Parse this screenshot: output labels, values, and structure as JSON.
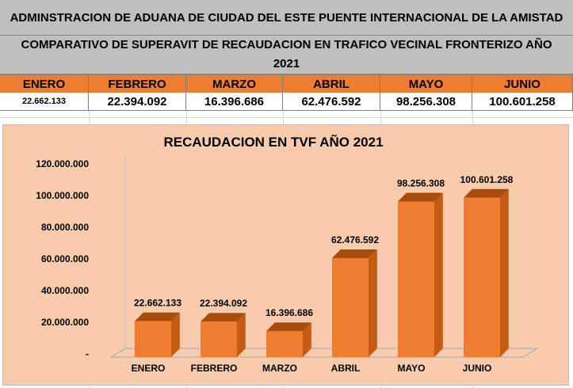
{
  "header": {
    "title": "ADMINSTRACION DE ADUANA DE CIUDAD DEL ESTE PUENTE INTERNACIONAL DE LA AMISTAD",
    "subtitle_line1": "COMPARATIVO DE SUPERAVIT DE RECAUDACION EN TRAFICO VECINAL FRONTERIZO AÑO",
    "subtitle_line2": "2021"
  },
  "table": {
    "months": [
      "ENERO",
      "FEBRERO",
      "MARZO",
      "ABRIL",
      "MAYO",
      "JUNIO"
    ],
    "values": [
      "22.662.133",
      "22.394.092",
      "16.396.686",
      "62.476.592",
      "98.256.308",
      "100.601.258"
    ]
  },
  "colors": {
    "header_bg": "#bfbfbf",
    "month_bg": "#ed7d31",
    "chart_bg": "#f8cbad",
    "bar_front": "#ed7d31",
    "bar_side": "#c55a11",
    "bar_top": "#a84c0e"
  },
  "chart_data": {
    "type": "bar",
    "title": "RECAUDACION EN TVF AÑO 2021",
    "categories": [
      "ENERO",
      "FEBRERO",
      "MARZO",
      "ABRIL",
      "MAYO",
      "JUNIO"
    ],
    "values": [
      22662133,
      22394092,
      16396686,
      62476592,
      98256308,
      100601258
    ],
    "value_labels": [
      "22.662.133",
      "22.394.092",
      "16.396.686",
      "62.476.592",
      "98.256.308",
      "100.601.258"
    ],
    "yticks": [
      0,
      20000000,
      40000000,
      60000000,
      80000000,
      100000000,
      120000000
    ],
    "ytick_labels": [
      "-",
      "20.000.000",
      "40.000.000",
      "60.000.000",
      "80.000.000",
      "100.000.000",
      "120.000.000"
    ],
    "ylim": [
      0,
      120000000
    ],
    "xlabel": "",
    "ylabel": "",
    "grid": false,
    "style": "3d-column"
  }
}
